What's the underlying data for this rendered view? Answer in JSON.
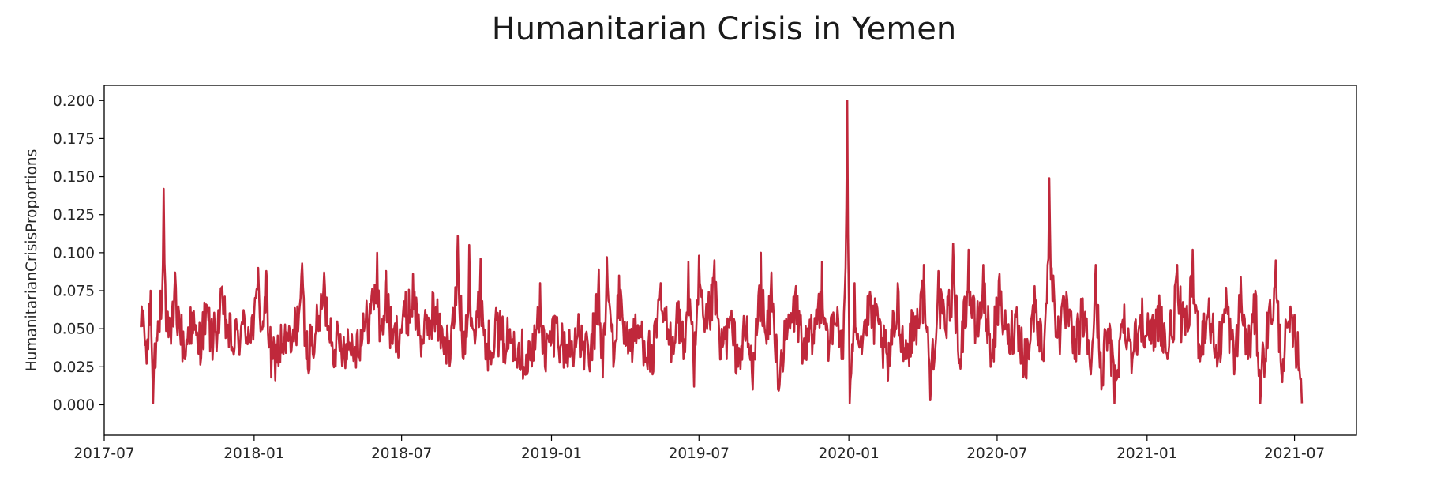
{
  "chart_data": {
    "type": "line",
    "title": "Humanitarian Crisis in Yemen",
    "xlabel": "",
    "ylabel": "HumanitarianCrisisProportions",
    "x_start": "2017-08-15",
    "x_end": "2021-07-10",
    "xlim": [
      "2017-07-01",
      "2021-09-15"
    ],
    "ylim": [
      -0.02,
      0.21
    ],
    "x_ticks": [
      "2017-07",
      "2018-01",
      "2018-07",
      "2019-01",
      "2019-07",
      "2020-01",
      "2020-07",
      "2021-01",
      "2021-07"
    ],
    "y_ticks": [
      "0.000",
      "0.025",
      "0.050",
      "0.075",
      "0.100",
      "0.125",
      "0.150",
      "0.175",
      "0.200"
    ],
    "grid": false,
    "line_color": "#c0283b",
    "series": [
      {
        "points": [
          [
            "2017-08-15",
            0.051
          ],
          [
            "2017-08-18",
            0.062
          ],
          [
            "2017-08-22",
            0.027
          ],
          [
            "2017-08-27",
            0.075
          ],
          [
            "2017-08-30",
            0.001
          ],
          [
            "2017-09-03",
            0.044
          ],
          [
            "2017-09-08",
            0.075
          ],
          [
            "2017-09-12",
            0.142
          ],
          [
            "2017-09-16",
            0.05
          ],
          [
            "2017-09-21",
            0.04
          ],
          [
            "2017-09-26",
            0.087
          ],
          [
            "2017-10-01",
            0.06
          ],
          [
            "2017-10-08",
            0.03
          ],
          [
            "2017-10-15",
            0.064
          ],
          [
            "2017-10-24",
            0.035
          ],
          [
            "2017-11-03",
            0.066
          ],
          [
            "2017-11-12",
            0.042
          ],
          [
            "2017-11-22",
            0.077
          ],
          [
            "2017-12-05",
            0.038
          ],
          [
            "2017-12-18",
            0.053
          ],
          [
            "2018-01-01",
            0.06
          ],
          [
            "2018-01-06",
            0.09
          ],
          [
            "2018-01-12",
            0.055
          ],
          [
            "2018-01-16",
            0.088
          ],
          [
            "2018-01-22",
            0.018
          ],
          [
            "2018-02-05",
            0.04
          ],
          [
            "2018-02-16",
            0.036
          ],
          [
            "2018-03-01",
            0.093
          ],
          [
            "2018-03-06",
            0.03
          ],
          [
            "2018-03-17",
            0.046
          ],
          [
            "2018-03-28",
            0.087
          ],
          [
            "2018-04-10",
            0.036
          ],
          [
            "2018-04-24",
            0.04
          ],
          [
            "2018-05-05",
            0.038
          ],
          [
            "2018-05-17",
            0.054
          ],
          [
            "2018-06-01",
            0.1
          ],
          [
            "2018-06-05",
            0.048
          ],
          [
            "2018-06-12",
            0.088
          ],
          [
            "2018-06-20",
            0.04
          ],
          [
            "2018-07-03",
            0.062
          ],
          [
            "2018-07-15",
            0.086
          ],
          [
            "2018-07-27",
            0.04
          ],
          [
            "2018-08-08",
            0.074
          ],
          [
            "2018-08-20",
            0.05
          ],
          [
            "2018-08-30",
            0.03
          ],
          [
            "2018-09-08",
            0.111
          ],
          [
            "2018-09-15",
            0.03
          ],
          [
            "2018-09-22",
            0.105
          ],
          [
            "2018-09-29",
            0.04
          ],
          [
            "2018-10-06",
            0.096
          ],
          [
            "2018-10-13",
            0.03
          ],
          [
            "2018-10-24",
            0.056
          ],
          [
            "2018-11-04",
            0.04
          ],
          [
            "2018-11-16",
            0.048
          ],
          [
            "2018-11-28",
            0.025
          ],
          [
            "2018-12-10",
            0.029
          ],
          [
            "2018-12-18",
            0.08
          ],
          [
            "2018-12-24",
            0.025
          ],
          [
            "2019-01-06",
            0.058
          ],
          [
            "2019-01-18",
            0.03
          ],
          [
            "2019-02-02",
            0.045
          ],
          [
            "2019-02-17",
            0.022
          ],
          [
            "2019-02-28",
            0.089
          ],
          [
            "2019-03-05",
            0.018
          ],
          [
            "2019-03-10",
            0.097
          ],
          [
            "2019-03-19",
            0.03
          ],
          [
            "2019-03-25",
            0.085
          ],
          [
            "2019-04-06",
            0.038
          ],
          [
            "2019-04-20",
            0.052
          ],
          [
            "2019-05-05",
            0.02
          ],
          [
            "2019-05-15",
            0.08
          ],
          [
            "2019-05-26",
            0.04
          ],
          [
            "2019-06-06",
            0.068
          ],
          [
            "2019-06-12",
            0.03
          ],
          [
            "2019-06-18",
            0.094
          ],
          [
            "2019-06-25",
            0.012
          ],
          [
            "2019-07-01",
            0.098
          ],
          [
            "2019-07-08",
            0.048
          ],
          [
            "2019-07-20",
            0.095
          ],
          [
            "2019-07-28",
            0.03
          ],
          [
            "2019-08-08",
            0.058
          ],
          [
            "2019-08-18",
            0.025
          ],
          [
            "2019-08-28",
            0.05
          ],
          [
            "2019-09-05",
            0.01
          ],
          [
            "2019-09-15",
            0.1
          ],
          [
            "2019-09-22",
            0.04
          ],
          [
            "2019-09-28",
            0.087
          ],
          [
            "2019-10-06",
            0.01
          ],
          [
            "2019-10-18",
            0.05
          ],
          [
            "2019-10-28",
            0.078
          ],
          [
            "2019-11-08",
            0.03
          ],
          [
            "2019-11-18",
            0.046
          ],
          [
            "2019-11-29",
            0.094
          ],
          [
            "2019-12-08",
            0.04
          ],
          [
            "2019-12-18",
            0.064
          ],
          [
            "2019-12-25",
            0.03
          ],
          [
            "2019-12-30",
            0.2
          ],
          [
            "2020-01-02",
            0.001
          ],
          [
            "2020-01-08",
            0.08
          ],
          [
            "2020-01-15",
            0.04
          ],
          [
            "2020-01-26",
            0.071
          ],
          [
            "2020-02-06",
            0.055
          ],
          [
            "2020-02-18",
            0.016
          ],
          [
            "2020-03-01",
            0.08
          ],
          [
            "2020-03-10",
            0.03
          ],
          [
            "2020-03-22",
            0.058
          ],
          [
            "2020-04-02",
            0.092
          ],
          [
            "2020-04-10",
            0.003
          ],
          [
            "2020-04-20",
            0.088
          ],
          [
            "2020-04-28",
            0.05
          ],
          [
            "2020-05-08",
            0.106
          ],
          [
            "2020-05-16",
            0.03
          ],
          [
            "2020-05-27",
            0.102
          ],
          [
            "2020-06-05",
            0.05
          ],
          [
            "2020-06-14",
            0.092
          ],
          [
            "2020-06-24",
            0.03
          ],
          [
            "2020-07-04",
            0.086
          ],
          [
            "2020-07-14",
            0.04
          ],
          [
            "2020-07-25",
            0.064
          ],
          [
            "2020-08-05",
            0.018
          ],
          [
            "2020-08-16",
            0.078
          ],
          [
            "2020-08-26",
            0.03
          ],
          [
            "2020-09-03",
            0.149
          ],
          [
            "2020-09-08",
            0.085
          ],
          [
            "2020-09-15",
            0.05
          ],
          [
            "2020-09-24",
            0.074
          ],
          [
            "2020-10-04",
            0.03
          ],
          [
            "2020-10-14",
            0.07
          ],
          [
            "2020-10-24",
            0.02
          ],
          [
            "2020-10-30",
            0.092
          ],
          [
            "2020-11-06",
            0.01
          ],
          [
            "2020-11-14",
            0.05
          ],
          [
            "2020-11-22",
            0.001
          ],
          [
            "2020-12-04",
            0.066
          ],
          [
            "2020-12-14",
            0.03
          ],
          [
            "2020-12-26",
            0.07
          ],
          [
            "2021-01-06",
            0.04
          ],
          [
            "2021-01-16",
            0.072
          ],
          [
            "2021-01-26",
            0.03
          ],
          [
            "2021-02-07",
            0.092
          ],
          [
            "2021-02-17",
            0.046
          ],
          [
            "2021-02-26",
            0.102
          ],
          [
            "2021-03-06",
            0.04
          ],
          [
            "2021-03-18",
            0.07
          ],
          [
            "2021-03-28",
            0.025
          ],
          [
            "2021-04-08",
            0.077
          ],
          [
            "2021-04-18",
            0.02
          ],
          [
            "2021-04-26",
            0.084
          ],
          [
            "2021-05-05",
            0.03
          ],
          [
            "2021-05-14",
            0.075
          ],
          [
            "2021-05-20",
            0.001
          ],
          [
            "2021-05-30",
            0.06
          ],
          [
            "2021-06-08",
            0.095
          ],
          [
            "2021-06-15",
            0.02
          ],
          [
            "2021-06-24",
            0.055
          ],
          [
            "2021-07-02",
            0.043
          ],
          [
            "2021-07-07",
            0.024
          ],
          [
            "2021-07-10",
            0.001
          ]
        ]
      }
    ]
  }
}
